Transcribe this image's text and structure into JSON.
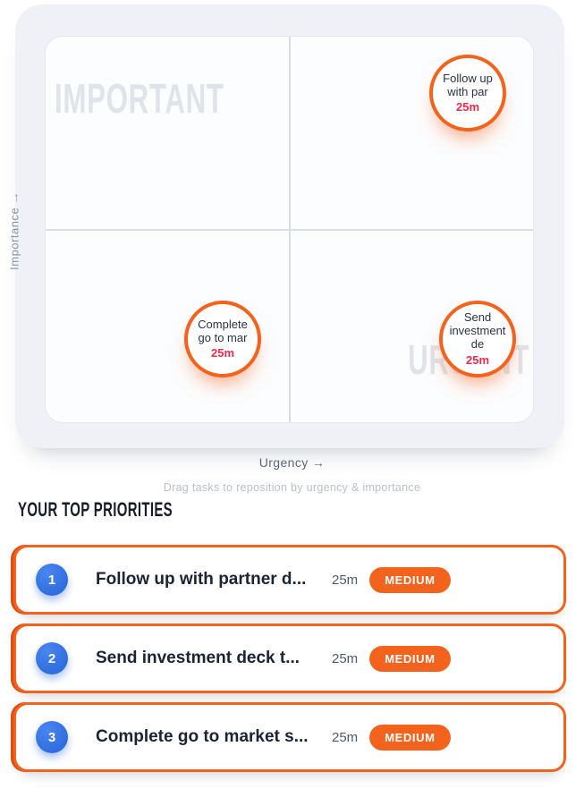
{
  "matrix": {
    "watermark_important": "IMPORTANT",
    "watermark_urgent": "URGENT",
    "y_axis_label": "Importance →",
    "x_axis_label": "Urgency →",
    "hint": "Drag tasks to reposition by urgency & importance",
    "bubbles": [
      {
        "label": "Follow up with par",
        "time": "25m",
        "quadrant": "important-urgent"
      },
      {
        "label": "Complete go to mar",
        "time": "25m",
        "quadrant": "not-important-not-urgent"
      },
      {
        "label": "Send investment de",
        "time": "25m",
        "quadrant": "not-important-urgent"
      }
    ]
  },
  "priorities": {
    "heading": "YOUR TOP PRIORITIES",
    "items": [
      {
        "rank": "1",
        "title": "Follow up with partner d...",
        "time": "25m",
        "badge": "MEDIUM"
      },
      {
        "rank": "2",
        "title": "Send investment deck t...",
        "time": "25m",
        "badge": "MEDIUM"
      },
      {
        "rank": "3",
        "title": "Complete go to market s...",
        "time": "25m",
        "badge": "MEDIUM"
      }
    ]
  },
  "colors": {
    "accent_orange": "#f4631d",
    "accent_orange_dark": "#dd4e0c",
    "rank_blue": "#2e6ce4",
    "time_red": "#f02a4c",
    "panel_bg": "#eff1f6",
    "watermark_gray": "#e0e3e9"
  }
}
